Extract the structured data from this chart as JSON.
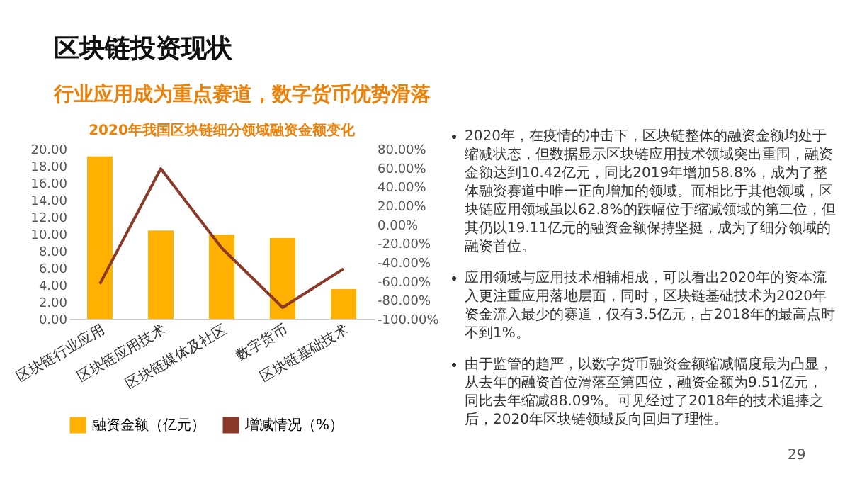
{
  "chart_data": {
    "type": "bar",
    "title": "2020年我国区块链细分领域融资金额变化",
    "categories": [
      "区块链行业应用",
      "区块链应用技术",
      "区块链媒体及社区",
      "数字货币",
      "区块链基础技术"
    ],
    "series": [
      {
        "name": "融资金额（亿元）",
        "color": "#ffb000",
        "values": [
          19.1,
          10.4,
          9.9,
          9.5,
          3.5
        ]
      },
      {
        "name": "增减情况（%）",
        "type": "line",
        "axis": "y2",
        "color": "#8b3a2a",
        "values": [
          -63,
          59,
          -25,
          -88,
          -47
        ]
      }
    ],
    "ylim": [
      0,
      20
    ],
    "yticks": [
      {
        "value": 0,
        "label": "0.00"
      },
      {
        "value": 2,
        "label": "2.00"
      },
      {
        "value": 4,
        "label": "4.00"
      },
      {
        "value": 6,
        "label": "6.00"
      },
      {
        "value": 8,
        "label": "8.00"
      },
      {
        "value": 10,
        "label": "10.00"
      },
      {
        "value": 12,
        "label": "12.00"
      },
      {
        "value": 14,
        "label": "14.00"
      },
      {
        "value": 16,
        "label": "16.00"
      },
      {
        "value": 18,
        "label": "18.00"
      },
      {
        "value": 20,
        "label": "20.00"
      }
    ],
    "y2lim": [
      -100,
      80
    ],
    "y2ticks": [
      {
        "value": -100,
        "label": "-100.00%"
      },
      {
        "value": -80,
        "label": "-80.00%"
      },
      {
        "value": -60,
        "label": "-60.00%"
      },
      {
        "value": -40,
        "label": "-40.00%"
      },
      {
        "value": -20,
        "label": "-20.00%"
      },
      {
        "value": 0,
        "label": "0.00%"
      },
      {
        "value": 20,
        "label": "20.00%"
      },
      {
        "value": 40,
        "label": "40.00%"
      },
      {
        "value": 60,
        "label": "60.00%"
      },
      {
        "value": 80,
        "label": "80.00%"
      }
    ],
    "legend": "bottom",
    "grid": false,
    "marker": "none",
    "annotations": [
      "区块链投资现状",
      "行业应用成为重点赛道，数字货币优势滑落",
      "2020年，在疫情的冲击下，区块链整体的融资金额均处于缩减状态，但数据显示区块链应用技术领域突出重围，融资金额达到10.42亿元，同比2019年增加58.8%，成为了整体融资赛道中唯一正向增加的领域。而相比于其他领域，区块链应用领域虽以62.8%的跌幅位于缩减领域的第二位，但其仍以19.11亿元的融资金额保持坚挺，成为了细分领域的融资首位。",
      "应用领域与应用技术相辅相成，可以看出2020年的资本流入更注重应用落地层面，同时，区块链基础技术为2020年资金流入最少的赛道，仅有3.5亿元，占2018年的最高点时不到1%。",
      "由于监管的趋严，以数字货币融资金额缩减幅度最为凸显，从去年的融资首位滑落至第四位，融资金额为9.51亿元，同比去年缩减88.09%。可见经过了2018年的技术追捧之后，2020年区块链领域反向回归了理性。",
      "29"
    ]
  }
}
